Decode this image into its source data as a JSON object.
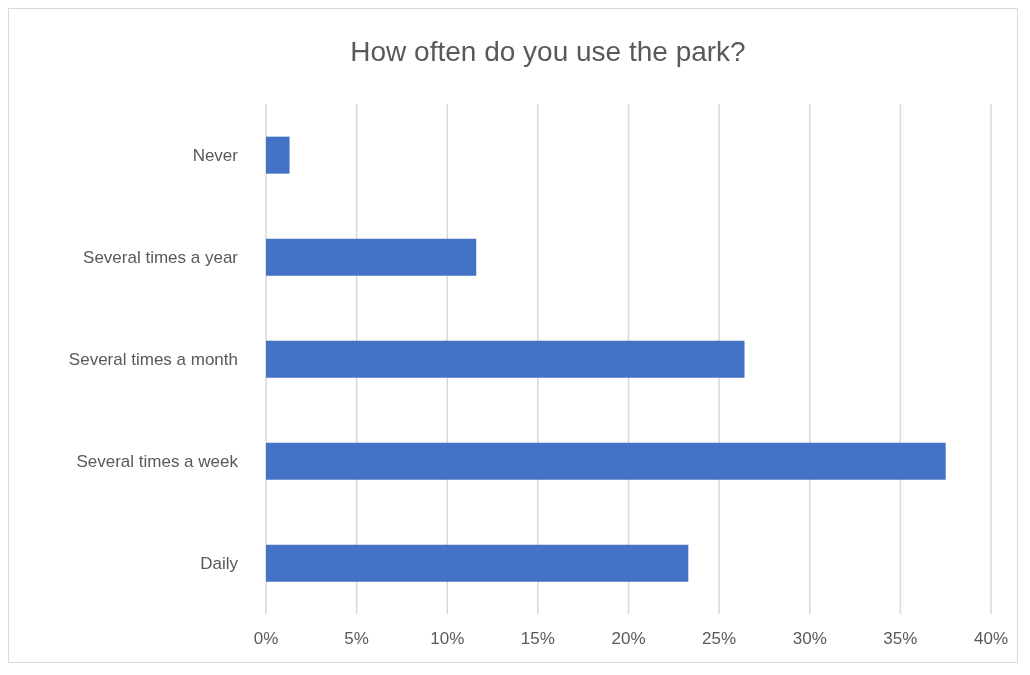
{
  "chart_data": {
    "type": "bar",
    "orientation": "horizontal",
    "title": "How often do you use the park?",
    "categories": [
      "Never",
      "Several times a year",
      "Several times a month",
      "Several times a week",
      "Daily"
    ],
    "values": [
      1.3,
      11.6,
      26.4,
      37.5,
      23.3
    ],
    "color": "#4472c4",
    "xlim": [
      0,
      40
    ],
    "xticks": [
      {
        "value": 0,
        "label": "0%"
      },
      {
        "value": 5,
        "label": "5%"
      },
      {
        "value": 10,
        "label": "10%"
      },
      {
        "value": 15,
        "label": "15%"
      },
      {
        "value": 20,
        "label": "20%"
      },
      {
        "value": 25,
        "label": "25%"
      },
      {
        "value": 30,
        "label": "30%"
      },
      {
        "value": 35,
        "label": "35%"
      },
      {
        "value": 40,
        "label": "40%"
      }
    ],
    "grid": "x",
    "legend": false
  }
}
